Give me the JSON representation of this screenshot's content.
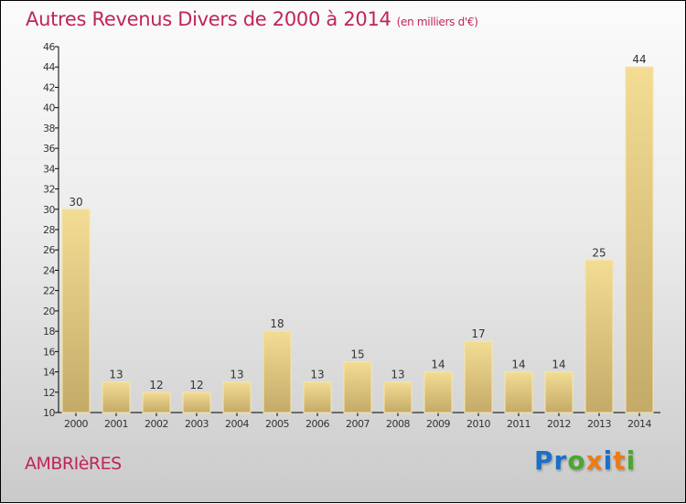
{
  "chart_data": {
    "type": "bar",
    "title": "Autres Revenus Divers de 2000 à 2014",
    "subtitle": "(en milliers d'€)",
    "categories": [
      "2000",
      "2001",
      "2002",
      "2003",
      "2004",
      "2005",
      "2006",
      "2007",
      "2008",
      "2009",
      "2010",
      "2011",
      "2012",
      "2013",
      "2014"
    ],
    "values": [
      30,
      13,
      12,
      12,
      13,
      18,
      13,
      15,
      13,
      14,
      17,
      14,
      14,
      25,
      44
    ],
    "ylim": [
      10,
      46
    ],
    "yticks": [
      10,
      12,
      14,
      16,
      18,
      20,
      22,
      24,
      26,
      28,
      30,
      32,
      34,
      36,
      38,
      40,
      42,
      44,
      46
    ],
    "xlabel": "",
    "ylabel": "",
    "colors": {
      "bar_top": "#f3dc94",
      "bar_bottom": "#c4aa68",
      "title": "#c0245c"
    }
  },
  "footer": {
    "city": "AMBRIèRES",
    "logo": "Proxiti"
  },
  "logo_colors": [
    "#1b6fc9",
    "#1b6fc9",
    "#4aa72f",
    "#f07a12",
    "#1b6fc9",
    "#f07a12",
    "#4aa72f"
  ]
}
